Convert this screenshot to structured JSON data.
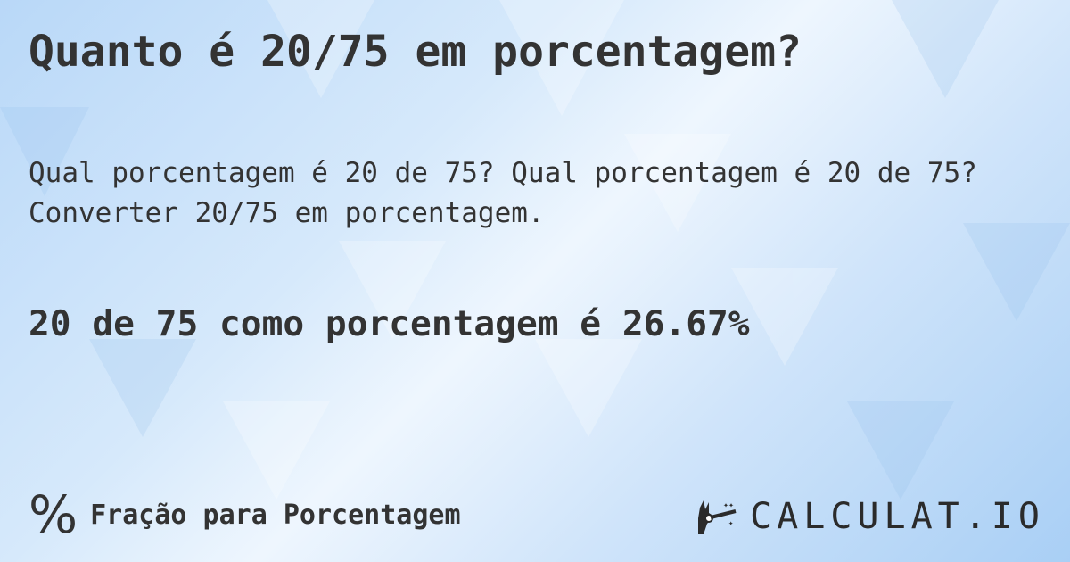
{
  "title": "Quanto é 20/75 em porcentagem?",
  "subtitle_line1": "Qual porcentagem é 20 de 75? Qual porcentagem é 20 de 75?",
  "subtitle_line2": "Converter 20/75 em porcentagem.",
  "result": "20 de 75 como porcentagem é 26.67%",
  "footer": {
    "icon": "percent-icon",
    "symbol": "%",
    "label": "Fração para Porcentagem"
  },
  "logo": {
    "text": "CALCULAT.IO",
    "icon": "magic-hand-icon"
  },
  "colors": {
    "text": "#333333",
    "background": "#cfe4fa"
  }
}
